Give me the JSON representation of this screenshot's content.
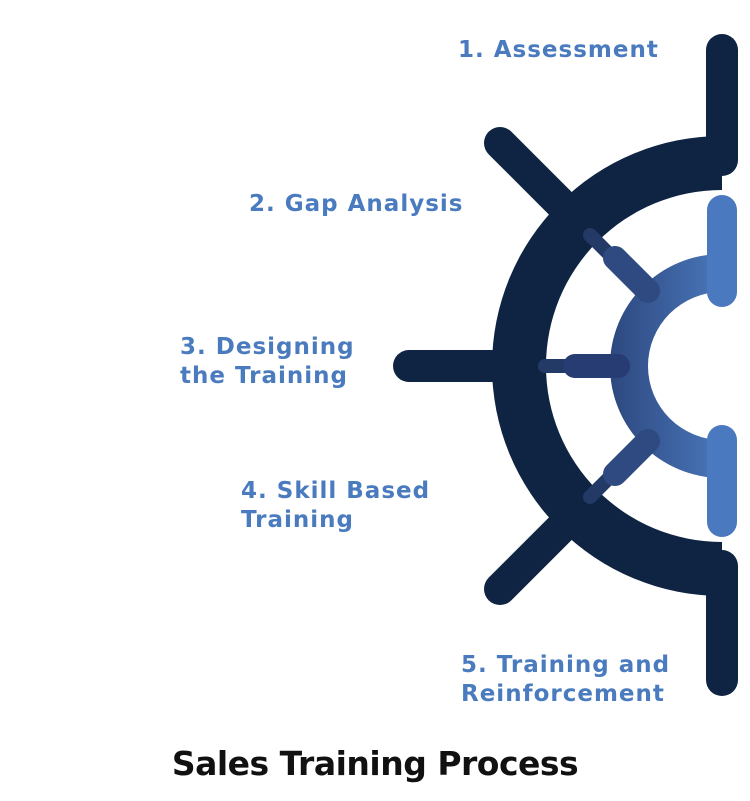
{
  "title": "Sales Training Process",
  "steps": [
    {
      "lines": [
        "1. Assessment"
      ]
    },
    {
      "lines": [
        "2. Gap Analysis"
      ]
    },
    {
      "lines": [
        "3. Designing",
        "the Training"
      ]
    },
    {
      "lines": [
        "4. Skill Based",
        "Training"
      ]
    },
    {
      "lines": [
        "5. Training and",
        "Reinforcement"
      ]
    }
  ],
  "colors": {
    "navy": "#0f2442",
    "accent": "#4a7bbf",
    "gradient_start": "#1f3162",
    "gradient_end": "#4f80c6",
    "title": "#111111"
  }
}
